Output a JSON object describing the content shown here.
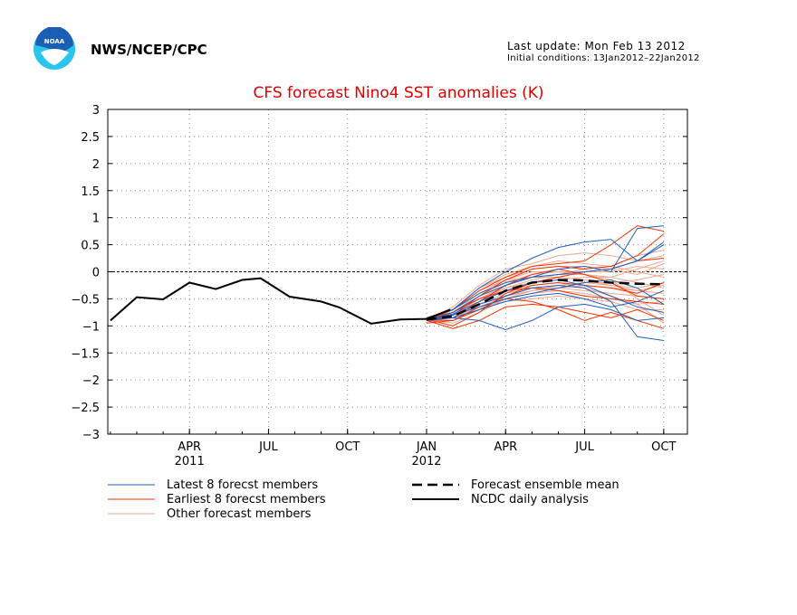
{
  "header": {
    "agency": "NWS/NCEP/CPC",
    "last_update": "Last update: Mon Feb 13 2012",
    "initial_conditions": "Initial conditions: 13Jan2012–22Jan2012"
  },
  "colors": {
    "title": "#dd0000",
    "latest": "#2060c0",
    "earliest": "#ee3300",
    "other": "#f0a890",
    "mean": "#000000",
    "analysis": "#000000",
    "logo_blue": "#1a5fb4",
    "logo_cyan": "#29c5f0"
  },
  "chart_data": {
    "type": "line",
    "title": "CFS forecast Nino4 SST anomalies (K)",
    "xlabel": "",
    "ylabel": "",
    "x_range": [
      "2011-01-15",
      "2011-12-15"
    ],
    "ylim": [
      -3,
      3
    ],
    "y_ticks": [
      3,
      2.5,
      2,
      1.5,
      1,
      0.5,
      0,
      -0.5,
      -1,
      -1.5,
      -2,
      -2.5,
      -3
    ],
    "y_tick_labels": [
      "3",
      "2.5",
      "2",
      "1.5",
      "1",
      "0.5",
      "0",
      "−0.5",
      "−1",
      "−1.5",
      "−2",
      "−2.5",
      "−3"
    ],
    "x_ticks": [
      {
        "label": "APR",
        "sub": "2011",
        "month": 3
      },
      {
        "label": "JUL",
        "sub": "",
        "month": 6
      },
      {
        "label": "OCT",
        "sub": "",
        "month": 9
      },
      {
        "label": "JAN",
        "sub": "2012",
        "month": 12
      },
      {
        "label": "APR",
        "sub": "",
        "month": 15
      },
      {
        "label": "JUL",
        "sub": "",
        "month": 18
      },
      {
        "label": "OCT",
        "sub": "",
        "month": 21
      }
    ],
    "grid": true,
    "legend": [
      {
        "label": "Latest 8 forecst members",
        "style": "latest"
      },
      {
        "label": "Earliest 8 forecst members",
        "style": "earliest"
      },
      {
        "label": "Other forecast members",
        "style": "other"
      },
      {
        "label": "Forecast ensemble mean",
        "style": "mean"
      },
      {
        "label": "NCDC daily analysis",
        "style": "analysis"
      }
    ],
    "series": [
      {
        "name": "NCDC daily analysis",
        "kind": "analysis",
        "x": [
          0,
          1,
          2,
          3,
          4,
          5,
          5.7,
          6.8,
          8,
          8.7,
          9.9,
          11,
          12,
          12.9
        ],
        "y": [
          -0.9,
          -0.47,
          -0.51,
          -0.2,
          -0.32,
          -0.15,
          -0.12,
          -0.46,
          -0.55,
          -0.66,
          -0.96,
          -0.88,
          -0.87,
          -0.7
        ]
      },
      {
        "name": "Forecast ensemble mean",
        "kind": "mean",
        "x": [
          12,
          13,
          14,
          15,
          16,
          17,
          18,
          19,
          20,
          21
        ],
        "y": [
          -0.88,
          -0.82,
          -0.6,
          -0.35,
          -0.2,
          -0.15,
          -0.16,
          -0.2,
          -0.22,
          -0.23
        ]
      },
      {
        "name": "Latest 8 forecst members",
        "kind": "latest",
        "members": [
          {
            "x": [
              12,
              13,
              14,
              15,
              16,
              17,
              18,
              19,
              20,
              21
            ],
            "y": [
              -0.85,
              -0.7,
              -0.3,
              0.0,
              0.25,
              0.45,
              0.55,
              0.6,
              0.2,
              0.55
            ]
          },
          {
            "x": [
              12,
              13,
              14,
              15,
              16,
              17,
              18,
              19,
              20,
              21
            ],
            "y": [
              -0.9,
              -0.75,
              -0.45,
              -0.25,
              -0.1,
              0.05,
              0.1,
              0.0,
              0.8,
              0.85
            ]
          },
          {
            "x": [
              12,
              13,
              14,
              15,
              16,
              17,
              18,
              19,
              20,
              21
            ],
            "y": [
              -0.88,
              -0.8,
              -0.6,
              -0.45,
              -0.3,
              -0.25,
              -0.3,
              -0.55,
              -1.2,
              -1.27
            ]
          },
          {
            "x": [
              12,
              13,
              14,
              15,
              16,
              17,
              18,
              19,
              20,
              21
            ],
            "y": [
              -0.87,
              -0.85,
              -0.9,
              -1.07,
              -0.9,
              -0.65,
              -0.6,
              -0.7,
              -0.9,
              -0.85
            ]
          },
          {
            "x": [
              12,
              13,
              14,
              15,
              16,
              17,
              18,
              19,
              20,
              21
            ],
            "y": [
              -0.86,
              -0.7,
              -0.4,
              -0.2,
              -0.1,
              -0.05,
              0.0,
              0.05,
              0.2,
              0.5
            ]
          },
          {
            "x": [
              12,
              13,
              14,
              15,
              16,
              17,
              18,
              19,
              20,
              21
            ],
            "y": [
              -0.88,
              -0.78,
              -0.55,
              -0.35,
              -0.2,
              -0.15,
              -0.25,
              -0.45,
              -0.65,
              -0.75
            ]
          },
          {
            "x": [
              12,
              13,
              14,
              15,
              16,
              17,
              18,
              19,
              20,
              21
            ],
            "y": [
              -0.9,
              -0.85,
              -0.7,
              -0.55,
              -0.45,
              -0.4,
              -0.5,
              -0.65,
              -0.55,
              -0.35
            ]
          },
          {
            "x": [
              12,
              13,
              14,
              15,
              16,
              17,
              18,
              19,
              20,
              21
            ],
            "y": [
              -0.87,
              -0.8,
              -0.65,
              -0.5,
              -0.4,
              -0.3,
              -0.2,
              -0.15,
              -0.3,
              -0.6
            ]
          }
        ]
      },
      {
        "name": "Earliest 8 forecst members",
        "kind": "earliest",
        "members": [
          {
            "x": [
              12,
              13,
              14,
              15,
              16,
              17,
              18,
              19,
              20,
              21
            ],
            "y": [
              -0.9,
              -0.7,
              -0.35,
              -0.1,
              0.1,
              0.15,
              0.2,
              0.5,
              0.85,
              0.75
            ]
          },
          {
            "x": [
              12,
              13,
              14,
              15,
              16,
              17,
              18,
              19,
              20,
              21
            ],
            "y": [
              -0.95,
              -0.9,
              -0.65,
              -0.5,
              -0.55,
              -0.7,
              -0.9,
              -0.75,
              -0.9,
              -1.05
            ]
          },
          {
            "x": [
              12,
              13,
              14,
              15,
              16,
              17,
              18,
              19,
              20,
              21
            ],
            "y": [
              -0.88,
              -1.0,
              -0.75,
              -0.4,
              -0.2,
              -0.1,
              0.0,
              0.05,
              0.2,
              0.25
            ]
          },
          {
            "x": [
              12,
              13,
              14,
              15,
              16,
              17,
              18,
              19,
              20,
              21
            ],
            "y": [
              -0.9,
              -0.85,
              -0.55,
              -0.25,
              -0.05,
              0.05,
              -0.05,
              -0.2,
              -0.45,
              -0.5
            ]
          },
          {
            "x": [
              12,
              13,
              14,
              15,
              16,
              17,
              18,
              19,
              20,
              21
            ],
            "y": [
              -0.86,
              -0.75,
              -0.5,
              -0.35,
              -0.3,
              -0.35,
              -0.45,
              -0.5,
              -0.55,
              -0.6
            ]
          },
          {
            "x": [
              12,
              13,
              14,
              15,
              16,
              17,
              18,
              19,
              20,
              21
            ],
            "y": [
              -0.9,
              -1.05,
              -0.9,
              -0.65,
              -0.6,
              -0.65,
              -0.75,
              -0.85,
              -0.7,
              -0.9
            ]
          },
          {
            "x": [
              12,
              13,
              14,
              15,
              16,
              17,
              18,
              19,
              20,
              21
            ],
            "y": [
              -0.87,
              -0.8,
              -0.45,
              -0.15,
              0.05,
              0.1,
              0.05,
              0.1,
              0.3,
              0.7
            ]
          },
          {
            "x": [
              12,
              13,
              14,
              15,
              16,
              17,
              18,
              19,
              20,
              21
            ],
            "y": [
              -0.89,
              -0.9,
              -0.7,
              -0.45,
              -0.25,
              -0.2,
              -0.25,
              -0.3,
              -0.4,
              -0.2
            ]
          }
        ]
      },
      {
        "name": "Other forecast members",
        "kind": "other",
        "members": [
          {
            "x": [
              12,
              13,
              14,
              15,
              16,
              17,
              18,
              19,
              20,
              21
            ],
            "y": [
              -0.88,
              -0.65,
              -0.25,
              0.05,
              0.15,
              0.3,
              0.35,
              0.3,
              0.2,
              0.3
            ]
          },
          {
            "x": [
              12,
              13,
              14,
              15,
              16,
              17,
              18,
              19,
              20,
              21
            ],
            "y": [
              -0.9,
              -0.8,
              -0.5,
              -0.3,
              -0.2,
              -0.15,
              -0.1,
              -0.1,
              -0.2,
              -0.3
            ]
          },
          {
            "x": [
              12,
              13,
              14,
              15,
              16,
              17,
              18,
              19,
              20,
              21
            ],
            "y": [
              -0.87,
              -0.75,
              -0.45,
              -0.2,
              -0.05,
              0.0,
              0.0,
              0.0,
              0.1,
              0.05
            ]
          },
          {
            "x": [
              12,
              13,
              14,
              15,
              16,
              17,
              18,
              19,
              20,
              21
            ],
            "y": [
              -0.9,
              -0.9,
              -0.7,
              -0.55,
              -0.5,
              -0.45,
              -0.5,
              -0.55,
              -0.7,
              -0.7
            ]
          },
          {
            "x": [
              12,
              13,
              14,
              15,
              16,
              17,
              18,
              19,
              20,
              21
            ],
            "y": [
              -0.86,
              -0.7,
              -0.35,
              -0.15,
              -0.1,
              -0.1,
              -0.15,
              -0.25,
              -0.35,
              -0.4
            ]
          },
          {
            "x": [
              12,
              13,
              14,
              15,
              16,
              17,
              18,
              19,
              20,
              21
            ],
            "y": [
              -0.89,
              -0.85,
              -0.6,
              -0.4,
              -0.3,
              -0.3,
              -0.35,
              -0.4,
              -0.45,
              -0.5
            ]
          },
          {
            "x": [
              12,
              13,
              14,
              15,
              16,
              17,
              18,
              19,
              20,
              21
            ],
            "y": [
              -0.88,
              -0.7,
              -0.3,
              -0.05,
              0.1,
              0.2,
              0.15,
              0.1,
              0.0,
              -0.1
            ]
          },
          {
            "x": [
              12,
              13,
              14,
              15,
              16,
              17,
              18,
              19,
              20,
              21
            ],
            "y": [
              -0.9,
              -0.95,
              -0.75,
              -0.5,
              -0.35,
              -0.25,
              -0.2,
              -0.25,
              -0.3,
              -0.2
            ]
          },
          {
            "x": [
              12,
              13,
              14,
              15,
              16,
              17,
              18,
              19,
              20,
              21
            ],
            "y": [
              -0.87,
              -0.8,
              -0.55,
              -0.3,
              -0.15,
              -0.05,
              0.05,
              0.1,
              0.3,
              0.4
            ]
          },
          {
            "x": [
              12,
              13,
              14,
              15,
              16,
              17,
              18,
              19,
              20,
              21
            ],
            "y": [
              -0.88,
              -0.85,
              -0.65,
              -0.45,
              -0.35,
              -0.25,
              -0.2,
              -0.2,
              -0.15,
              -0.05
            ]
          },
          {
            "x": [
              12,
              13,
              14,
              15,
              16,
              17,
              18,
              19,
              20,
              21
            ],
            "y": [
              -0.9,
              -0.75,
              -0.4,
              -0.15,
              0.0,
              0.0,
              -0.05,
              -0.15,
              -0.5,
              -0.8
            ]
          },
          {
            "x": [
              12,
              13,
              14,
              15,
              16,
              17,
              18,
              19,
              20,
              21
            ],
            "y": [
              -0.86,
              -0.8,
              -0.55,
              -0.35,
              -0.25,
              -0.2,
              -0.3,
              -0.45,
              -0.6,
              -0.95
            ]
          },
          {
            "x": [
              12,
              13,
              14,
              15,
              16,
              17,
              18,
              19,
              20,
              21
            ],
            "y": [
              -0.89,
              -0.7,
              -0.3,
              -0.1,
              0.05,
              0.1,
              0.1,
              0.05,
              -0.05,
              0.15
            ]
          },
          {
            "x": [
              12,
              13,
              14,
              15,
              16,
              17,
              18,
              19,
              20,
              21
            ],
            "y": [
              -0.88,
              -0.9,
              -0.7,
              -0.5,
              -0.4,
              -0.35,
              -0.4,
              -0.5,
              -0.6,
              -0.55
            ]
          },
          {
            "x": [
              12,
              13,
              14,
              15,
              16,
              17,
              18,
              19,
              20,
              21
            ],
            "y": [
              -0.87,
              -0.75,
              -0.5,
              -0.25,
              -0.1,
              -0.05,
              -0.05,
              -0.1,
              0.05,
              0.2
            ]
          },
          {
            "x": [
              12,
              13,
              14,
              15,
              16,
              17,
              18,
              19,
              20,
              21
            ],
            "y": [
              -0.9,
              -0.8,
              -0.6,
              -0.45,
              -0.35,
              -0.3,
              -0.25,
              -0.3,
              -0.35,
              -0.25
            ]
          }
        ]
      }
    ]
  }
}
